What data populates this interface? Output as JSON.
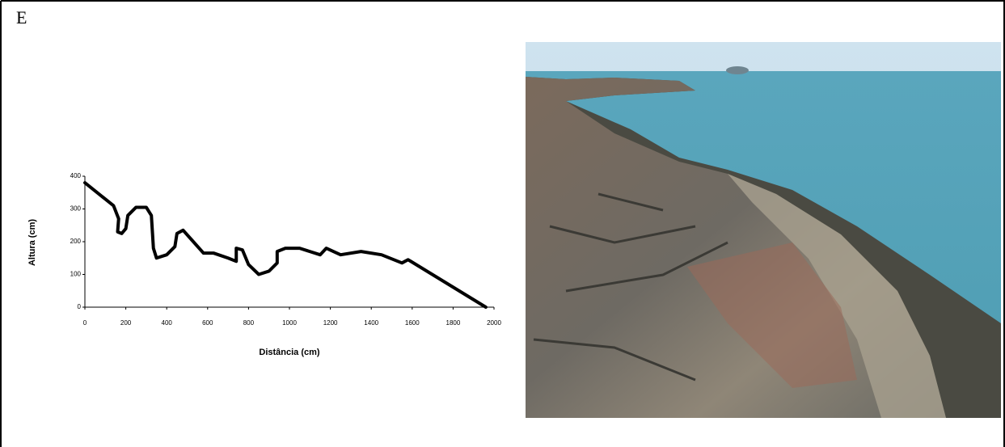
{
  "panel_label": "E",
  "chart_data": {
    "type": "line",
    "x_label": "Distância (cm)",
    "y_label": "Altura (cm)",
    "x": [
      0,
      140,
      165,
      160,
      180,
      200,
      210,
      250,
      300,
      325,
      335,
      350,
      400,
      440,
      450,
      480,
      530,
      580,
      630,
      700,
      740,
      740,
      770,
      800,
      850,
      900,
      940,
      940,
      980,
      1050,
      1150,
      1180,
      1250,
      1350,
      1450,
      1550,
      1580,
      1960
    ],
    "values": [
      380,
      310,
      270,
      230,
      225,
      240,
      280,
      305,
      305,
      280,
      180,
      150,
      160,
      185,
      225,
      235,
      200,
      165,
      165,
      150,
      140,
      180,
      175,
      130,
      100,
      110,
      135,
      170,
      180,
      180,
      160,
      180,
      160,
      170,
      160,
      135,
      145,
      0
    ],
    "color": "#000000",
    "xlim": [
      0,
      2000
    ],
    "xticks": [
      0,
      200,
      400,
      600,
      800,
      1000,
      1200,
      1400,
      1600,
      1800,
      2000
    ],
    "ylim": [
      0,
      400
    ],
    "yticks": [
      0,
      100,
      200,
      300,
      400
    ]
  }
}
